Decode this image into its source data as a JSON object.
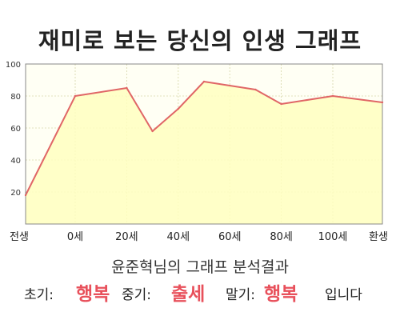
{
  "title": "재미로 보는 당신의 인생 그래프",
  "subtitle": "윤준혁님의 그래프 분석결과",
  "result": {
    "early_label": "초기:",
    "early_value": "행복",
    "middle_label": "중기:",
    "middle_value": "출세",
    "late_label": "말기:",
    "late_value": "행복",
    "ending": "입니다"
  },
  "colors": {
    "line": "#e06666",
    "fill": "#ffffc0",
    "highlight": "#e8505b"
  },
  "chart_data": {
    "type": "area",
    "x_tick_labels": [
      "전생",
      "0세",
      "20세",
      "40세",
      "60세",
      "80세",
      "100세",
      "환생"
    ],
    "y_ticks": [
      20,
      40,
      60,
      80,
      100
    ],
    "ylim": [
      0,
      100
    ],
    "grid": true,
    "points": [
      {
        "x": "전생",
        "y": 18
      },
      {
        "x": "0세",
        "y": 80
      },
      {
        "x": "20세",
        "y": 85
      },
      {
        "x": "30세",
        "y": 58
      },
      {
        "x": "40세",
        "y": 72
      },
      {
        "x": "50세",
        "y": 89
      },
      {
        "x": "70세",
        "y": 84
      },
      {
        "x": "80세",
        "y": 75
      },
      {
        "x": "100세",
        "y": 80
      },
      {
        "x": "환생",
        "y": 76
      }
    ]
  }
}
